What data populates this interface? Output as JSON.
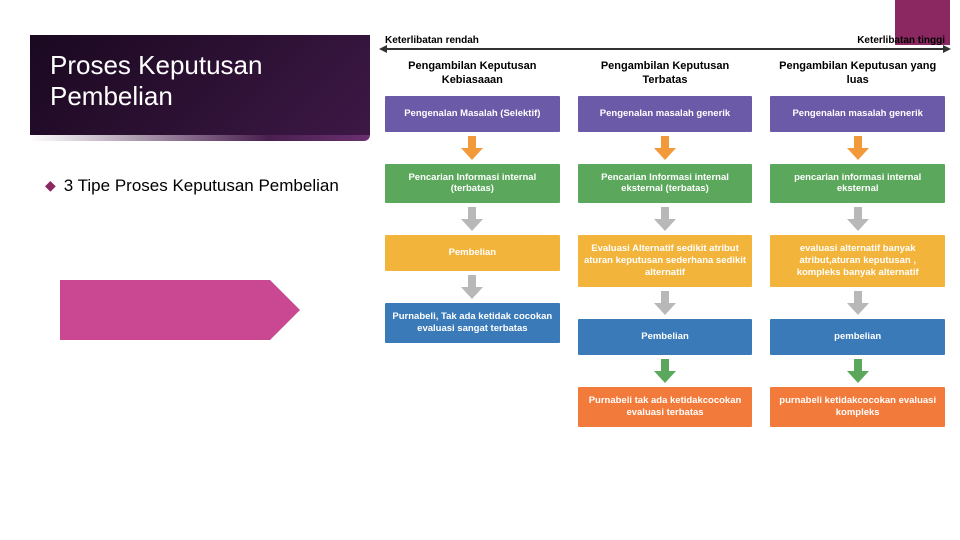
{
  "slide": {
    "title": "Proses Keputusan Pembelian",
    "bullet": "3 Tipe Proses Keputusan Pembelian",
    "accent_color": "#8b2862",
    "pink_arrow_color": "#c94891"
  },
  "diagram": {
    "spectrum_left": "Keterlibatan rendah",
    "spectrum_right": "Keterlibatan tinggi",
    "arrow_gray": "#b8b8b8",
    "columns": [
      {
        "header": "Pengambilan Keputusan Kebiasaaan",
        "boxes": [
          {
            "text": "Pengenalan Masalah (Selektif)",
            "color": "#6b5aa8",
            "arrow": "#f29a3a"
          },
          {
            "text": "Pencarian Informasi internal (terbatas)",
            "color": "#5ba85c",
            "arrow": "#b8b8b8"
          },
          {
            "text": "Pembelian",
            "color": "#f2b43a",
            "arrow": "#b8b8b8"
          },
          {
            "text": "Purnabeli, Tak ada ketidak cocokan evaluasi sangat terbatas",
            "color": "#3a7ab8"
          }
        ]
      },
      {
        "header": "Pengambilan Keputusan Terbatas",
        "boxes": [
          {
            "text": "Pengenalan masalah generik",
            "color": "#6b5aa8",
            "arrow": "#f29a3a"
          },
          {
            "text": "Pencarian Informasi internal eksternal (terbatas)",
            "color": "#5ba85c",
            "arrow": "#b8b8b8"
          },
          {
            "text": "Evaluasi Alternatif sedikit atribut aturan keputusan sederhana sedikit alternatif",
            "color": "#f2b43a",
            "arrow": "#b8b8b8"
          },
          {
            "text": "Pembelian",
            "color": "#3a7ab8",
            "arrow": "#5ba85c"
          },
          {
            "text": "Purnabeli tak ada ketidakcocokan evaluasi terbatas",
            "color": "#f27a3a"
          }
        ]
      },
      {
        "header": "Pengambilan Keputusan yang luas",
        "boxes": [
          {
            "text": "Pengenalan masalah generik",
            "color": "#6b5aa8",
            "arrow": "#f29a3a"
          },
          {
            "text": "pencarian informasi internal eksternal",
            "color": "#5ba85c",
            "arrow": "#b8b8b8"
          },
          {
            "text": "evaluasi alternatif banyak atribut,aturan keputusan , kompleks banyak alternatif",
            "color": "#f2b43a",
            "arrow": "#b8b8b8"
          },
          {
            "text": "pembelian",
            "color": "#3a7ab8",
            "arrow": "#5ba85c"
          },
          {
            "text": "purnabeli ketidakcocokan evaluasi kompleks",
            "color": "#f27a3a"
          }
        ]
      }
    ]
  }
}
